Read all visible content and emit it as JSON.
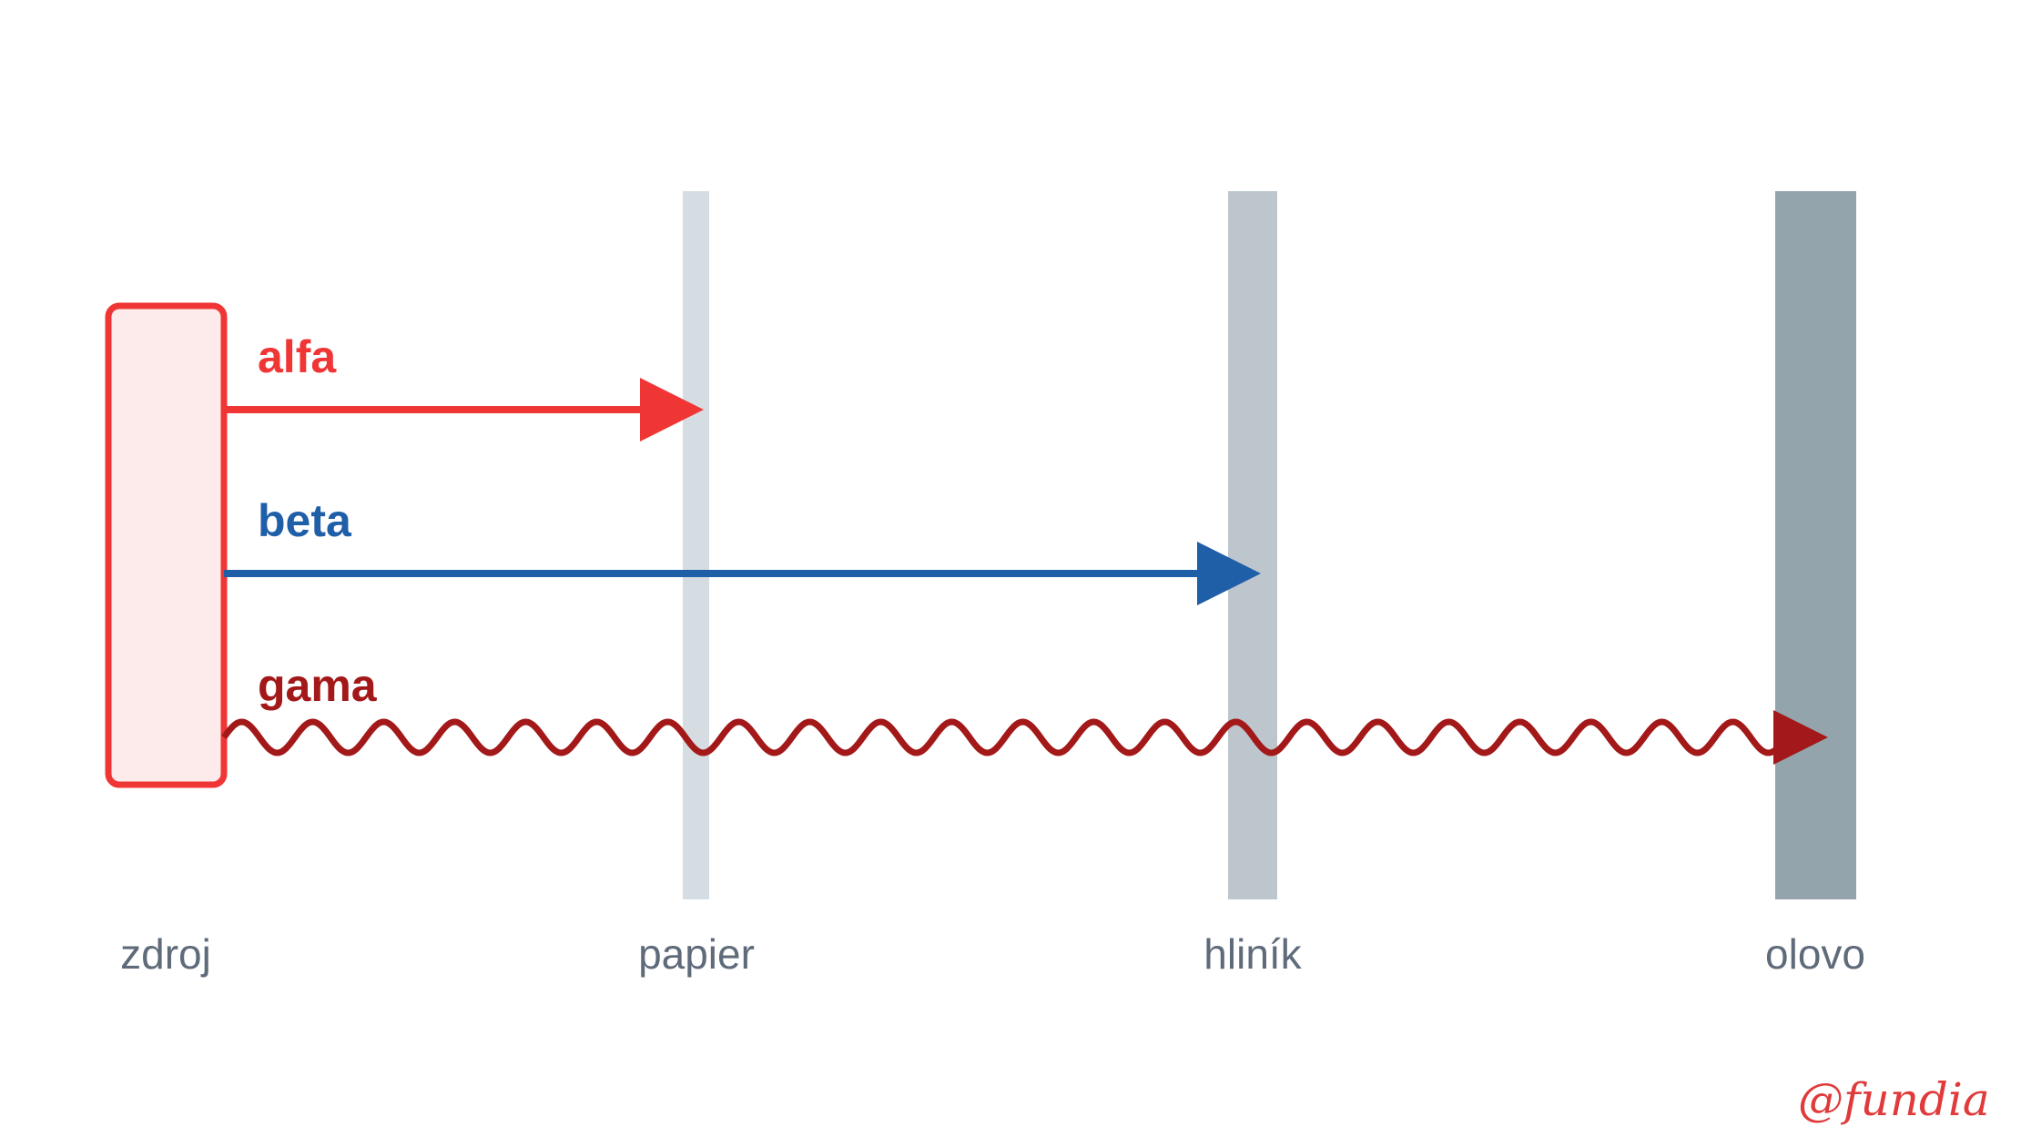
{
  "source": {
    "label": "zdroj"
  },
  "barriers": [
    {
      "label": "papier"
    },
    {
      "label": "hliník"
    },
    {
      "label": "olovo"
    }
  ],
  "rays": [
    {
      "label": "alfa"
    },
    {
      "label": "beta"
    },
    {
      "label": "gama"
    }
  ],
  "watermark": "@fundia"
}
